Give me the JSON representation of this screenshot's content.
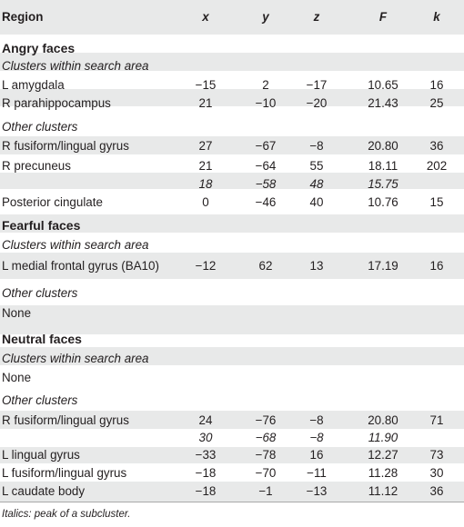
{
  "header": {
    "region": "Region",
    "x": "x",
    "y": "y",
    "z": "z",
    "f": "F",
    "k": "k"
  },
  "sections": [
    {
      "title": "Angry faces",
      "groups": [
        {
          "label": "Clusters within search area",
          "rows": [
            {
              "region": "L amygdala",
              "x": "−15",
              "y": "2",
              "z": "−17",
              "f": "10.65",
              "k": "16"
            },
            {
              "region": "R parahippocampus",
              "x": "21",
              "y": "−10",
              "z": "−20",
              "f": "21.43",
              "k": "25"
            }
          ]
        },
        {
          "label": "Other clusters",
          "rows": [
            {
              "region": "R fusiform/lingual gyrus",
              "x": "27",
              "y": "−67",
              "z": "−8",
              "f": "20.80",
              "k": "36"
            },
            {
              "region": "R precuneus",
              "x": "21",
              "y": "−64",
              "z": "55",
              "f": "18.11",
              "k": "202"
            },
            {
              "region": "",
              "x": "18",
              "y": "−58",
              "z": "48",
              "f": "15.75",
              "k": "",
              "subpeak": true
            },
            {
              "region": "Posterior cingulate",
              "x": "0",
              "y": "−46",
              "z": "40",
              "f": "10.76",
              "k": "15"
            }
          ]
        }
      ]
    },
    {
      "title": "Fearful faces",
      "groups": [
        {
          "label": "Clusters within search area",
          "rows": [
            {
              "region": "L medial frontal gyrus (BA10)",
              "x": "−12",
              "y": "62",
              "z": "13",
              "f": "17.19",
              "k": "16"
            }
          ]
        },
        {
          "label": "Other clusters",
          "rows": [
            {
              "region": "None",
              "x": "",
              "y": "",
              "z": "",
              "f": "",
              "k": ""
            }
          ]
        }
      ]
    },
    {
      "title": "Neutral faces",
      "groups": [
        {
          "label": "Clusters within search area",
          "rows": [
            {
              "region": "None",
              "x": "",
              "y": "",
              "z": "",
              "f": "",
              "k": ""
            }
          ]
        },
        {
          "label": "Other clusters",
          "rows": [
            {
              "region": "R fusiform/lingual gyrus",
              "x": "24",
              "y": "−76",
              "z": "−8",
              "f": "20.80",
              "k": "71"
            },
            {
              "region": "",
              "x": "30",
              "y": "−68",
              "z": "−8",
              "f": "11.90",
              "k": "",
              "subpeak": true
            },
            {
              "region": "L lingual gyrus",
              "x": "−33",
              "y": "−78",
              "z": "16",
              "f": "12.27",
              "k": "73"
            },
            {
              "region": "L fusiform/lingual gyrus",
              "x": "−18",
              "y": "−70",
              "z": "−11",
              "f": "11.28",
              "k": "30"
            },
            {
              "region": "L caudate body",
              "x": "−18",
              "y": "−1",
              "z": "−13",
              "f": "11.12",
              "k": "36"
            }
          ]
        }
      ]
    }
  ],
  "footnote": "Italics: peak of a subcluster."
}
